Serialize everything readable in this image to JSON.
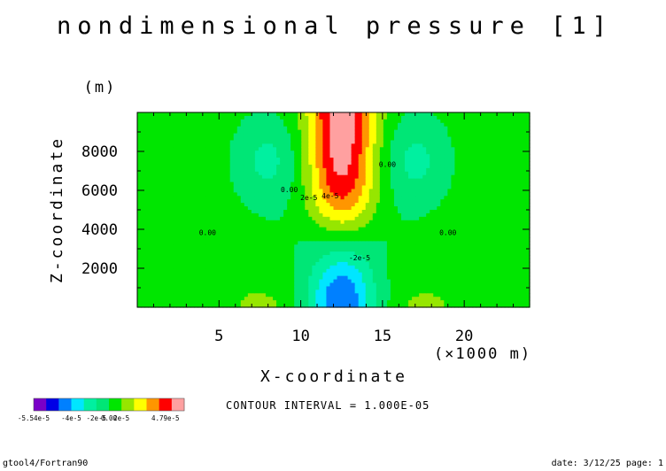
{
  "chart_data": {
    "type": "contour",
    "title": "nondimensional pressure [1]",
    "xlabel": "X-coordinate",
    "x_unit": "(×1000 m)",
    "ylabel": "Z-coordinate",
    "y_unit": "(m)",
    "xlim": [
      0,
      24
    ],
    "ylim": [
      0,
      10000
    ],
    "x_ticks": [
      5,
      10,
      15,
      20
    ],
    "y_ticks": [
      2000,
      4000,
      6000,
      8000
    ],
    "contour_interval_text": "CONTOUR INTERVAL = 1.000E-05",
    "colorbar": {
      "min": -5.54e-05,
      "max": 4.79e-05,
      "labels": [
        "-5.54e-5",
        "-4e-5",
        "-2e-5",
        "0.00",
        "2e-5",
        "4.79e-5"
      ],
      "colors": [
        "#7a00c8",
        "#0000e6",
        "#0080ff",
        "#00e6ff",
        "#00f0a0",
        "#00e676",
        "#00e600",
        "#96e600",
        "#ffff00",
        "#ff9600",
        "#ff0000",
        "#ffa0a0"
      ]
    },
    "contour_labels": [
      {
        "text": "0.00",
        "x": 9.3,
        "z": 5900
      },
      {
        "text": "2e-5",
        "x": 10.5,
        "z": 5500
      },
      {
        "text": "4e-5",
        "x": 11.8,
        "z": 5600
      },
      {
        "text": "0.00",
        "x": 15.3,
        "z": 7200
      },
      {
        "text": "0.00",
        "x": 4.3,
        "z": 3700
      },
      {
        "text": "0.00",
        "x": 19.0,
        "z": 3700
      },
      {
        "text": "-2e-5",
        "x": 13.6,
        "z": 2400
      }
    ]
  },
  "footer": {
    "left": "gtool4/Fortran90",
    "right": "date: 3/12/25 page: 1"
  }
}
